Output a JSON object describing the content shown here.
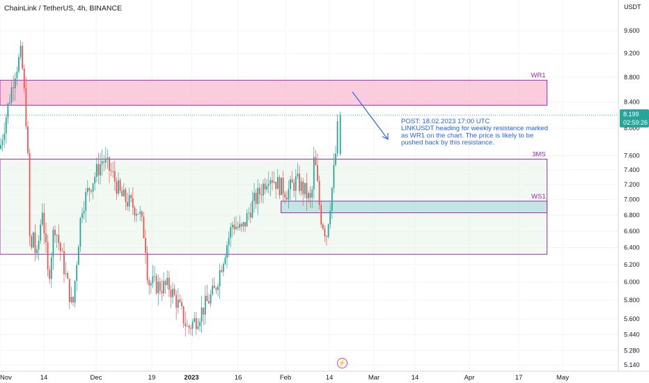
{
  "header": {
    "title": "ChainLink / TetherUS, 4h, BINANCE"
  },
  "axis": {
    "currency": "USDT"
  },
  "price_tag": {
    "value": "8.199",
    "countdown": "02:59:26",
    "color": "#26a69a"
  },
  "annotation": {
    "lines": [
      "POST: 18.02.2023 17:00 UTC",
      "LINKUSDT heading for weekly resistance marked",
      "as WR1 on the chart. The price is likely to be",
      "pushed back by this resistance."
    ],
    "color": "#2962ff"
  },
  "colors": {
    "up": "#26a69a",
    "down": "#ef5350",
    "zone_border": "#9c27b0",
    "wr1_fill": "#f8bbd0",
    "ms_fill": "#e8f5e9",
    "ws1_fill": "#b2dfdb"
  },
  "chart_data": {
    "type": "candlestick",
    "title": "ChainLink / TetherUS, 4h, BINANCE",
    "ylabel": "USDT",
    "scale": "log",
    "ylim": [
      5.08,
      10.5
    ],
    "y_ticks": [
      5.14,
      5.28,
      5.44,
      5.6,
      5.8,
      6.0,
      6.2,
      6.4,
      6.6,
      6.8,
      7.0,
      7.2,
      7.4,
      7.6,
      8.0,
      8.4,
      8.8,
      9.2,
      9.6
    ],
    "y_tick_labels": [
      "5.140",
      "5.280",
      "5.440",
      "5.600",
      "5.800",
      "6.000",
      "6.200",
      "6.400",
      "6.600",
      "6.800",
      "7.000",
      "7.200",
      "7.400",
      "7.600",
      "8.000",
      "8.400",
      "8.800",
      "9.200",
      "9.600"
    ],
    "x_tick_labels": [
      "Nov",
      "14",
      "Dec",
      "19",
      "2023",
      "16",
      "Feb",
      "14",
      "Mar",
      "14",
      "Apr",
      "17",
      "May"
    ],
    "x_range": [
      "2022-10-29",
      "2023-05-05"
    ],
    "last_price": 8.199,
    "zones": [
      {
        "label": "WR1",
        "from": "2022-10-29",
        "to": "2023-04-28",
        "low": 8.35,
        "high": 8.75
      },
      {
        "label": "3MS",
        "from": "2022-10-29",
        "to": "2023-04-28",
        "low": 6.32,
        "high": 7.55
      },
      {
        "label": "WS1",
        "from": "2023-01-30",
        "to": "2023-04-28",
        "low": 6.83,
        "high": 6.98
      }
    ],
    "ohlc_path": [
      [
        "2022-10-29",
        7.7
      ],
      [
        "2022-11-03",
        8.9
      ],
      [
        "2022-11-05",
        9.2
      ],
      [
        "2022-11-07",
        7.9
      ],
      [
        "2022-11-08",
        6.2
      ],
      [
        "2022-11-09",
        6.6
      ],
      [
        "2022-11-10",
        6.2
      ],
      [
        "2022-11-12",
        6.9
      ],
      [
        "2022-11-14",
        6.0
      ],
      [
        "2022-11-16",
        6.7
      ],
      [
        "2022-11-19",
        6.2
      ],
      [
        "2022-11-22",
        5.7
      ],
      [
        "2022-11-25",
        6.9
      ],
      [
        "2022-11-28",
        7.2
      ],
      [
        "2022-12-02",
        7.55
      ],
      [
        "2022-12-05",
        7.35
      ],
      [
        "2022-12-08",
        7.05
      ],
      [
        "2022-12-11",
        6.95
      ],
      [
        "2022-12-14",
        6.85
      ],
      [
        "2022-12-16",
        6.5
      ],
      [
        "2022-12-17",
        6.0
      ],
      [
        "2022-12-21",
        5.95
      ],
      [
        "2022-12-24",
        5.95
      ],
      [
        "2022-12-27",
        5.75
      ],
      [
        "2022-12-30",
        5.5
      ],
      [
        "2023-01-02",
        5.6
      ],
      [
        "2023-01-05",
        5.75
      ],
      [
        "2023-01-08",
        5.9
      ],
      [
        "2023-01-11",
        6.3
      ],
      [
        "2023-01-14",
        6.7
      ],
      [
        "2023-01-17",
        6.6
      ],
      [
        "2023-01-20",
        6.9
      ],
      [
        "2023-01-23",
        7.1
      ],
      [
        "2023-01-26",
        7.35
      ],
      [
        "2023-01-29",
        7.2
      ],
      [
        "2023-02-01",
        7.1
      ],
      [
        "2023-02-04",
        7.25
      ],
      [
        "2023-02-07",
        7.1
      ],
      [
        "2023-02-09",
        6.95
      ],
      [
        "2023-02-10",
        7.6
      ],
      [
        "2023-02-12",
        6.8
      ],
      [
        "2023-02-14",
        6.55
      ],
      [
        "2023-02-16",
        7.2
      ],
      [
        "2023-02-17",
        7.6
      ],
      [
        "2023-02-18",
        8.2
      ]
    ]
  }
}
